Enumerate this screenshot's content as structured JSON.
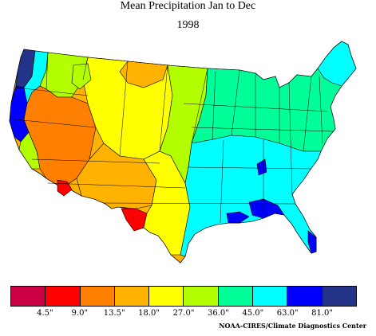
{
  "header": {
    "title": "Mean Precipitation Jan to Dec",
    "subtitle": "1998"
  },
  "legend": {
    "colors": [
      "#cc0044",
      "#ff0000",
      "#ff7f00",
      "#ffb300",
      "#ffff00",
      "#b3ff00",
      "#00ff99",
      "#00ffff",
      "#0000ff",
      "#223388"
    ],
    "ticks": [
      "4.5\"",
      "9.0\"",
      "13.5\"",
      "18.0\"",
      "27.0\"",
      "36.0\"",
      "45.0\"",
      "63.0\"",
      "81.0\""
    ]
  },
  "credit": "NOAA-CIRES/Climate Diagnostics Center",
  "map": {
    "land_fill": "#ffb300",
    "regions": [
      {
        "color": "#223388"
      },
      {
        "color": "#0000ff"
      },
      {
        "color": "#00ffff"
      },
      {
        "color": "#b3ff00"
      },
      {
        "color": "#ff7f00"
      },
      {
        "color": "#ffb300"
      },
      {
        "color": "#ffff00"
      },
      {
        "color": "#00ff99"
      },
      {
        "color": "#ff0000"
      }
    ]
  }
}
